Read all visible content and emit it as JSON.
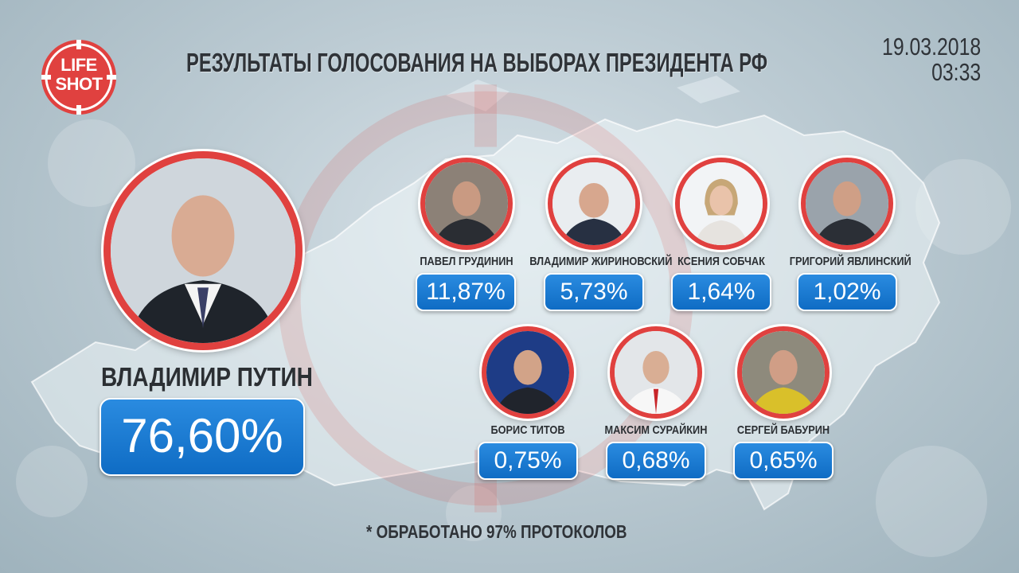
{
  "logo": {
    "line1": "LIFE",
    "line2": "SHOT"
  },
  "header": {
    "title": "РЕЗУЛЬТАТЫ ГОЛОСОВАНИЯ НА ВЫБОРАХ ПРЕЗИДЕНТА РФ",
    "date": "19.03.2018",
    "time": "03:33"
  },
  "leader": {
    "name": "ВЛАДИМИР ПУТИН",
    "percent": "76,60%"
  },
  "candidates": [
    {
      "name": "ПАВЕЛ ГРУДИНИН",
      "percent": "11,87%"
    },
    {
      "name": "ВЛАДИМИР ЖИРИНОВСКИЙ",
      "percent": "5,73%"
    },
    {
      "name": "КСЕНИЯ СОБЧАК",
      "percent": "1,64%"
    },
    {
      "name": "ГРИГОРИЙ ЯВЛИНСКИЙ",
      "percent": "1,02%"
    },
    {
      "name": "БОРИС ТИТОВ",
      "percent": "0,75%"
    },
    {
      "name": "МАКСИМ СУРАЙКИН",
      "percent": "0,68%"
    },
    {
      "name": "СЕРГЕЙ БАБУРИН",
      "percent": "0,65%"
    }
  ],
  "footnote": "* ОБРАБОТАНО 97% ПРОТОКОЛОВ",
  "colors": {
    "accent_red": "#e0413f",
    "badge_blue": "#1a7bd6",
    "text_dark": "#2f3338"
  }
}
